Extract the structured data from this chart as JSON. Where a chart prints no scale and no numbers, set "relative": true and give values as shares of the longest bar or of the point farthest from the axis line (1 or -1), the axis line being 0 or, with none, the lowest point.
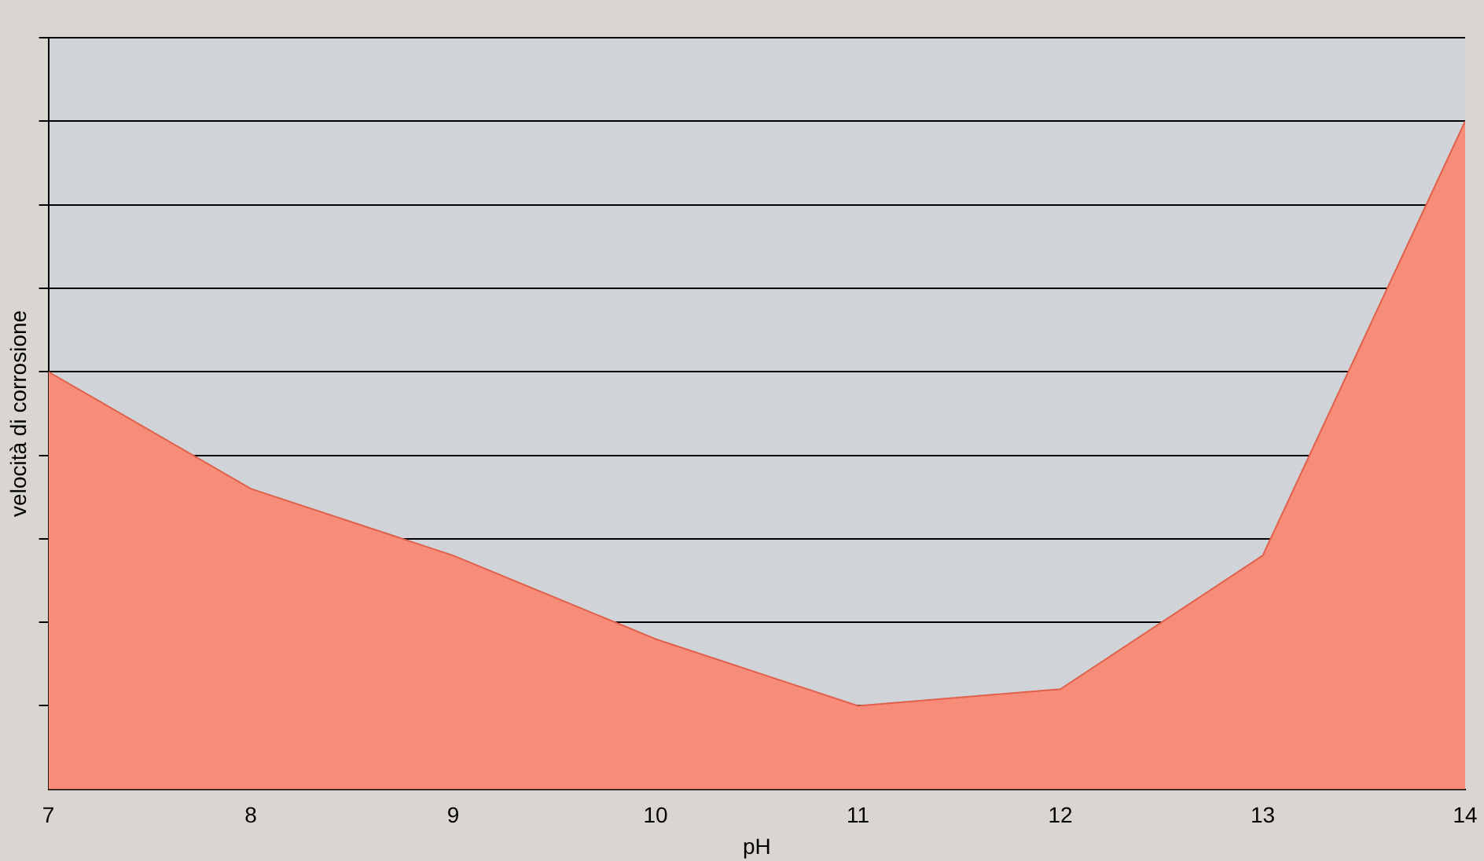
{
  "chart_data": {
    "type": "area",
    "xlabel": "pH",
    "ylabel": "velocità di corrosione",
    "relative": true,
    "x": [
      7,
      8,
      9,
      10,
      11,
      12,
      13,
      14
    ],
    "series": [
      {
        "color": "#f78d78",
        "values": [
          0.625,
          0.45,
          0.35,
          0.225,
          0.125,
          0.15,
          0.35,
          1
        ]
      }
    ],
    "xlim": [
      7,
      14
    ],
    "xticks": [
      7,
      8,
      9,
      10,
      11,
      12,
      13,
      14
    ],
    "grid": "y",
    "legend": false
  }
}
